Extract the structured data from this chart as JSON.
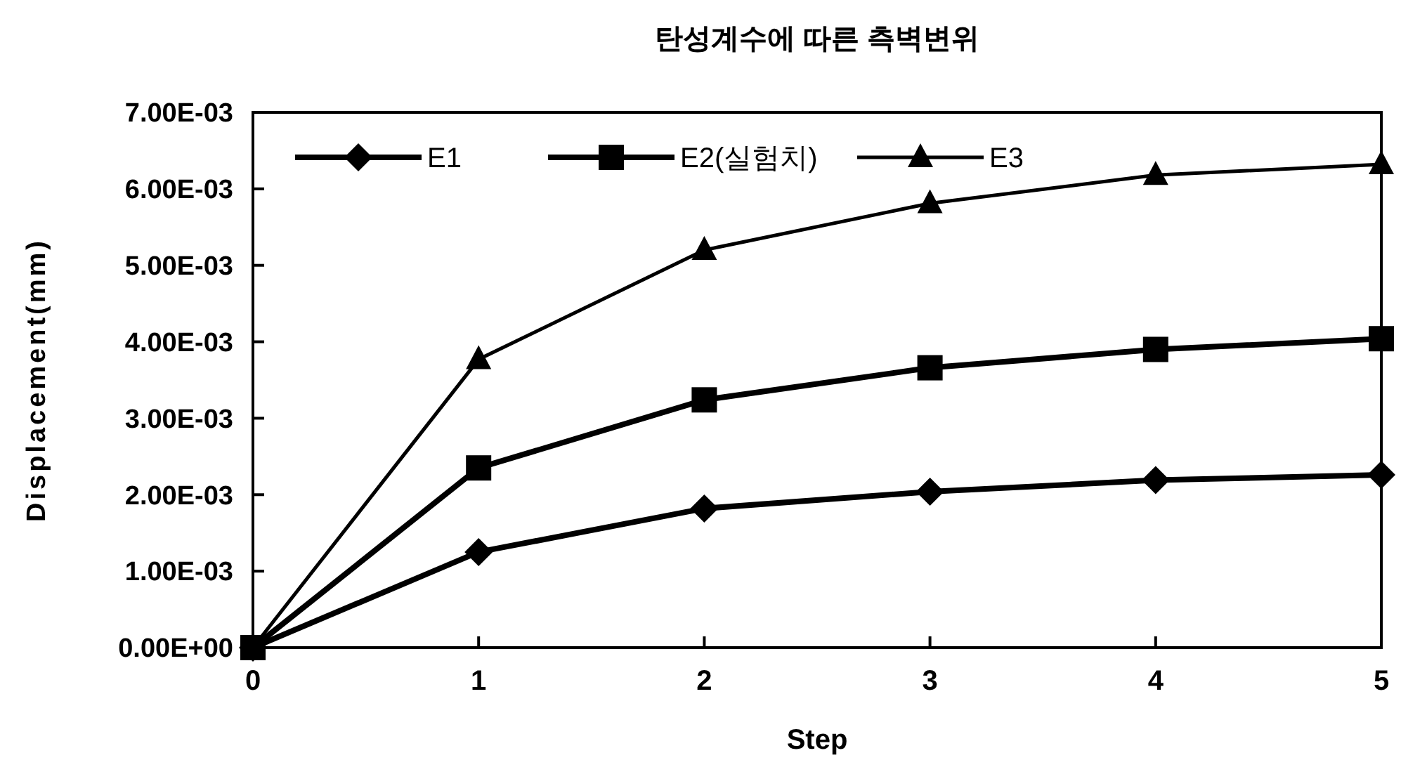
{
  "chart_data": {
    "type": "line",
    "title": "탄성계수에 따른 측벽변위",
    "xlabel": "Step",
    "ylabel": "Displacement(mm)",
    "x": [
      0,
      1,
      2,
      3,
      4,
      5
    ],
    "xlim": [
      0,
      5
    ],
    "xticks": [
      0,
      1,
      2,
      3,
      4,
      5
    ],
    "ylim": [
      0,
      0.007
    ],
    "yticks": [
      {
        "value": 0,
        "label": "0.00E+00"
      },
      {
        "value": 0.001,
        "label": "1.00E-03"
      },
      {
        "value": 0.002,
        "label": "2.00E-03"
      },
      {
        "value": 0.003,
        "label": "3.00E-03"
      },
      {
        "value": 0.004,
        "label": "4.00E-03"
      },
      {
        "value": 0.005,
        "label": "5.00E-03"
      },
      {
        "value": 0.006,
        "label": "6.00E-03"
      },
      {
        "value": 0.007,
        "label": "7.00E-03"
      }
    ],
    "grid": false,
    "legend": "top left",
    "series": [
      {
        "name": "E1",
        "color": "#000000",
        "marker": "diamond",
        "values": [
          0,
          0.00125,
          0.00182,
          0.00204,
          0.00219,
          0.00226
        ]
      },
      {
        "name": "E2(실험치)",
        "color": "#000000",
        "marker": "square",
        "values": [
          0,
          0.00235,
          0.00324,
          0.00366,
          0.0039,
          0.00404
        ]
      },
      {
        "name": "E3",
        "color": "#000000",
        "marker": "triangle",
        "values": [
          0,
          0.00377,
          0.0052,
          0.00581,
          0.00618,
          0.00632
        ]
      }
    ]
  }
}
